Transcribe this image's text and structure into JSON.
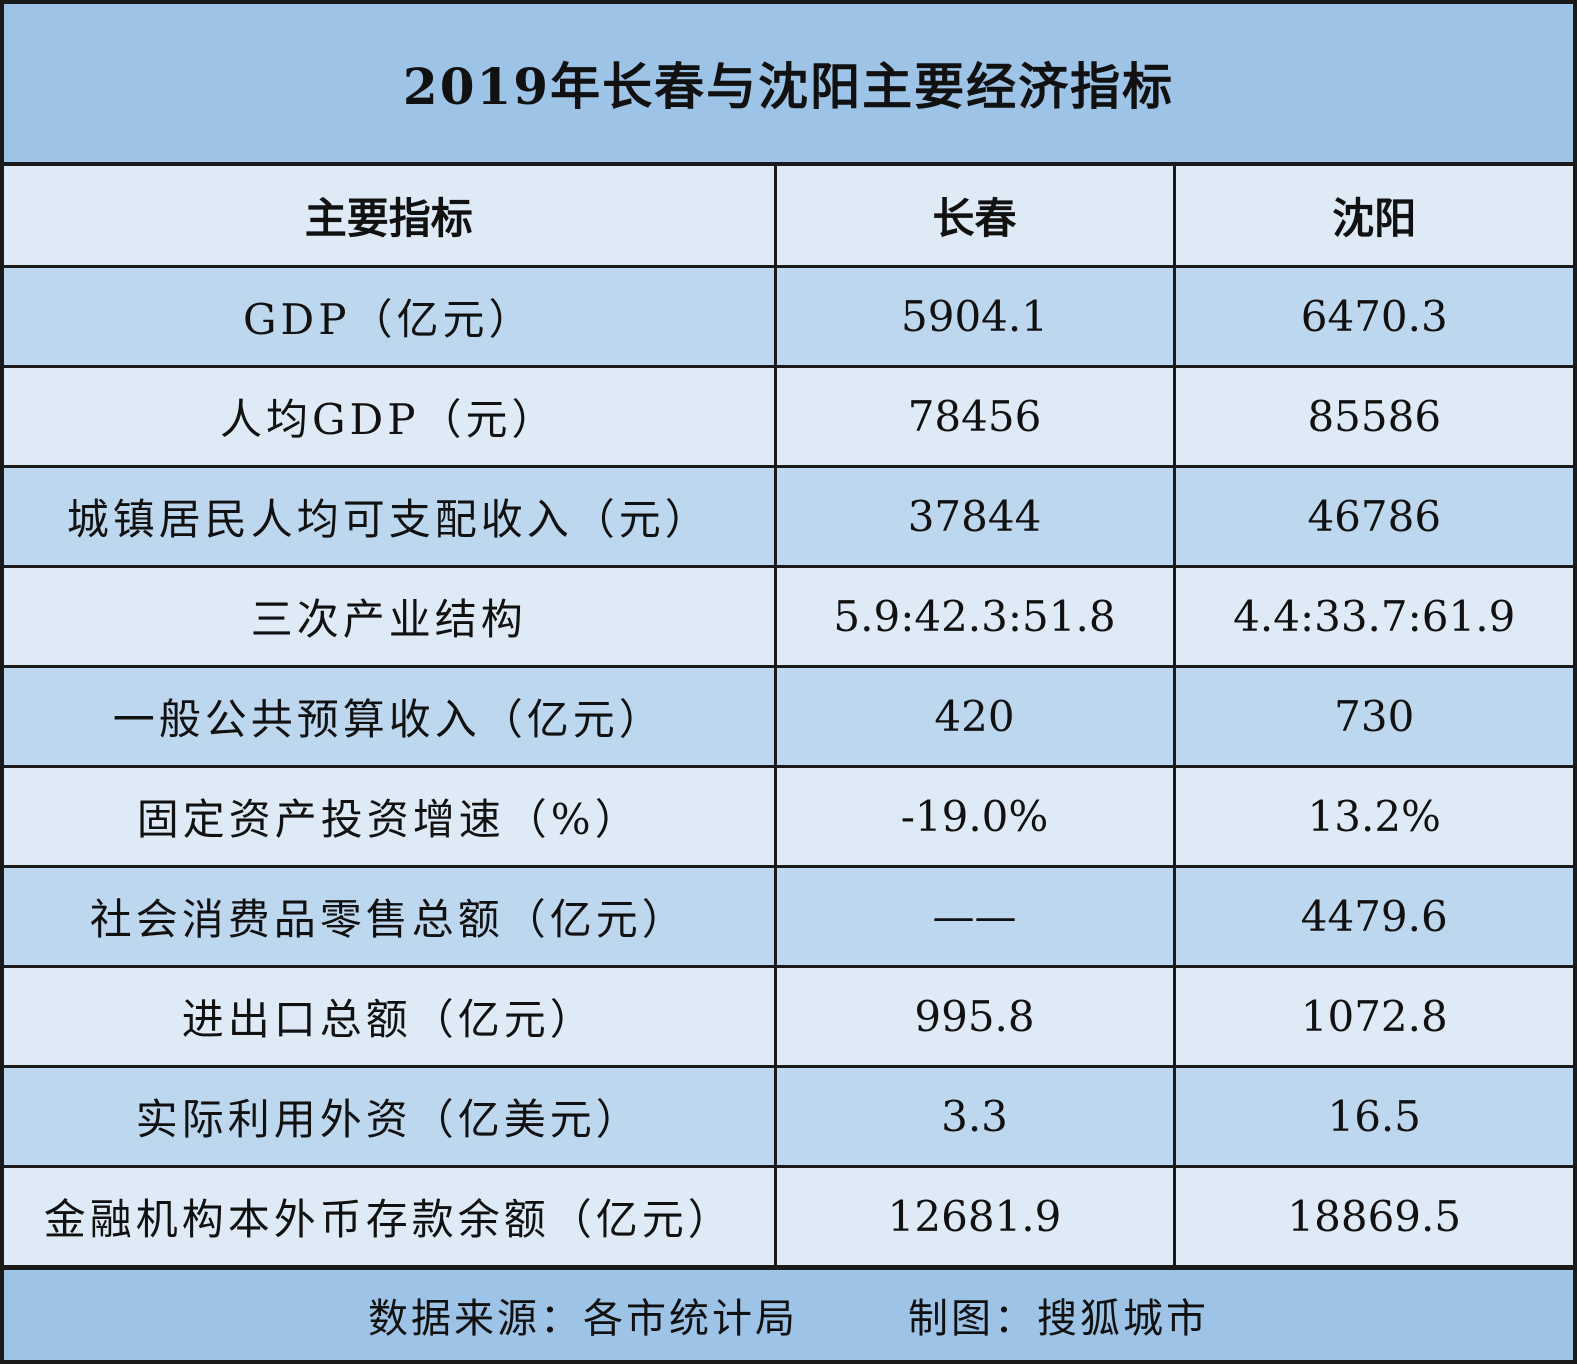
{
  "title": "2019年长春与沈阳主要经济指标",
  "chart_data": {
    "type": "table",
    "headers": [
      "主要指标",
      "长春",
      "沈阳"
    ],
    "rows": [
      [
        "GDP（亿元）",
        "5904.1",
        "6470.3"
      ],
      [
        "人均GDP（元）",
        "78456",
        "85586"
      ],
      [
        "城镇居民人均可支配收入（元）",
        "37844",
        "46786"
      ],
      [
        "三次产业结构",
        "5.9:42.3:51.8",
        "4.4:33.7:61.9"
      ],
      [
        "一般公共预算收入（亿元）",
        "420",
        "730"
      ],
      [
        "固定资产投资增速（%）",
        "-19.0%",
        "13.2%"
      ],
      [
        "社会消费品零售总额（亿元）",
        "——",
        "4479.6"
      ],
      [
        "进出口总额（亿元）",
        "995.8",
        "1072.8"
      ],
      [
        "实际利用外资（亿美元）",
        "3.3",
        "16.5"
      ],
      [
        "金融机构本外币存款余额（亿元）",
        "12681.9",
        "18869.5"
      ]
    ]
  },
  "footer": {
    "source": "数据来源：各市统计局",
    "credit": "制图：搜狐城市"
  },
  "colors": {
    "header_band": "#9dc3e6",
    "row_light": "#deebf7",
    "row_dark": "#bdd7ee",
    "border": "#1a1a1a"
  }
}
